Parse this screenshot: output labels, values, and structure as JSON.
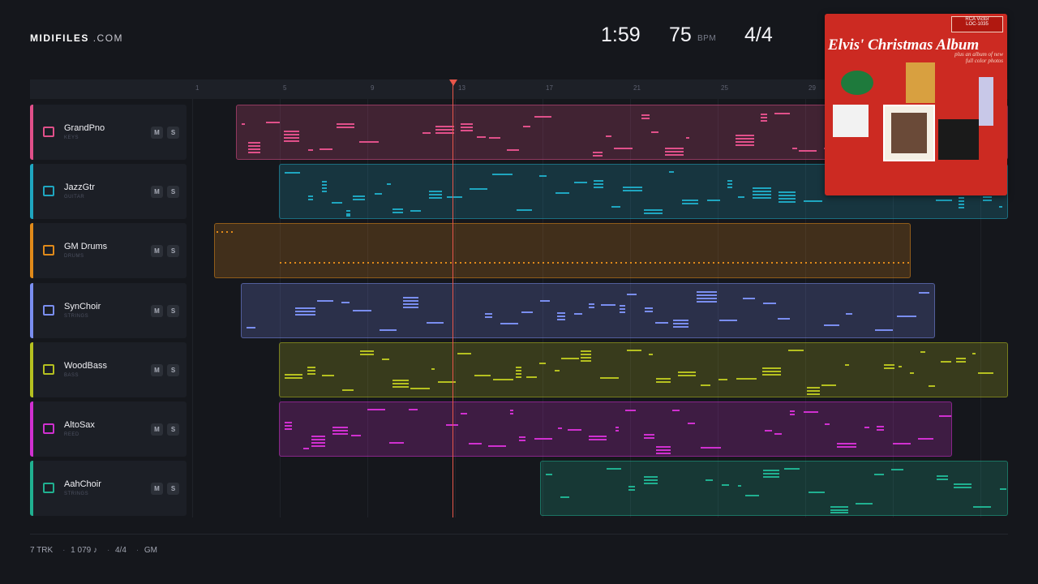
{
  "brand": {
    "name": "MIDIFILES",
    "suffix": ".COM"
  },
  "transport": {
    "time": "1:59",
    "tempo": 75,
    "tempo_unit": "BPM",
    "meter": "4/4"
  },
  "ruler": [
    1,
    5,
    9,
    13,
    17,
    21,
    25,
    29
  ],
  "tracks": [
    {
      "name": "GrandPno",
      "category": "KEYS",
      "mute": "M",
      "solo": "S"
    },
    {
      "name": "JazzGtr",
      "category": "GUITAR",
      "mute": "M",
      "solo": "S"
    },
    {
      "name": "GM Drums",
      "category": "DRUMS",
      "mute": "M",
      "solo": "S"
    },
    {
      "name": "SynChoir",
      "category": "STRINGS",
      "mute": "M",
      "solo": "S"
    },
    {
      "name": "WoodBass",
      "category": "BASS",
      "mute": "M",
      "solo": "S"
    },
    {
      "name": "AltoSax",
      "category": "REED",
      "mute": "M",
      "solo": "S"
    },
    {
      "name": "AahChoir",
      "category": "STRINGS",
      "mute": "M",
      "solo": "S"
    }
  ],
  "album": {
    "title": "Elvis' Christmas Album",
    "label": "RCA Victor",
    "catalog": "LOC-1035",
    "tagline": "plus an album of new full color photos"
  },
  "footer": [
    "7 TRK",
    "1 079 ♪",
    "4/4",
    "GM"
  ]
}
